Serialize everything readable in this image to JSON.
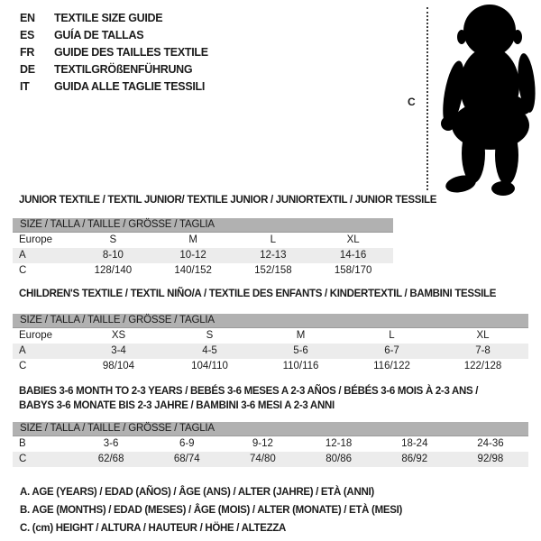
{
  "colors": {
    "background": "#ffffff",
    "table_header_bar": "#b1b1b1",
    "shaded_row": "#ececec",
    "text": "#1b1b1b",
    "silhouette": "#000000"
  },
  "header": {
    "languages": [
      {
        "code": "EN",
        "label": "TEXTILE SIZE GUIDE"
      },
      {
        "code": "ES",
        "label": "GUÍA DE TALLAS"
      },
      {
        "code": "FR",
        "label": "GUIDE DES TAILLES TEXTILE"
      },
      {
        "code": "DE",
        "label": "TEXTILGRÖßENFÜHRUNG"
      },
      {
        "code": "IT",
        "label": "GUIDA ALLE TAGLIE TESSILI"
      }
    ]
  },
  "figure": {
    "measure_label": "C",
    "silhouette": "toddler-silhouette"
  },
  "sections": [
    {
      "title_lines": [
        "JUNIOR TEXTILE / TEXTIL JUNIOR/ TEXTILE JUNIOR / JUNIORTEXTIL / JUNIOR TESSILE"
      ],
      "table": {
        "header": "SIZE / TALLA / TAILLE / GRÖSSE / TAGLIA",
        "rows": [
          {
            "label": "Europe",
            "shaded": false,
            "cells": [
              "S",
              "M",
              "L",
              "XL"
            ]
          },
          {
            "label": "A",
            "shaded": true,
            "cells": [
              "8-10",
              "10-12",
              "12-13",
              "14-16"
            ]
          },
          {
            "label": "C",
            "shaded": false,
            "cells": [
              "128/140",
              "140/152",
              "152/158",
              "158/170"
            ]
          }
        ]
      }
    },
    {
      "title_lines": [
        "CHILDREN'S TEXTILE / TEXTIL NIÑO/A / TEXTILE DES ENFANTS / KINDERTEXTIL / BAMBINI TESSILE"
      ],
      "table": {
        "header": "SIZE / TALLA / TAILLE / GRÖSSE / TAGLIA",
        "rows": [
          {
            "label": "Europe",
            "shaded": false,
            "cells": [
              "XS",
              "S",
              "M",
              "L",
              "XL"
            ]
          },
          {
            "label": "A",
            "shaded": true,
            "cells": [
              "3-4",
              "4-5",
              "5-6",
              "6-7",
              "7-8"
            ]
          },
          {
            "label": "C",
            "shaded": false,
            "cells": [
              "98/104",
              "104/110",
              "110/116",
              "116/122",
              "122/128"
            ]
          }
        ]
      }
    },
    {
      "title_lines": [
        "BABIES 3-6 MONTH TO 2-3 YEARS / BEBÉS 3-6 MESES A 2-3 AÑOS / BÉBÉS 3-6 MOIS À 2-3 ANS /",
        "BABYS 3-6 MONATE BIS 2-3 JAHRE / BAMBINI 3-6 MESI A 2-3 ANNI"
      ],
      "table": {
        "header": "SIZE / TALLA / TAILLE / GRÖSSE / TAGLIA",
        "rows": [
          {
            "label": "B",
            "shaded": false,
            "cells": [
              "3-6",
              "6-9",
              "9-12",
              "12-18",
              "18-24",
              "24-36"
            ]
          },
          {
            "label": "C",
            "shaded": true,
            "cells": [
              "62/68",
              "68/74",
              "74/80",
              "80/86",
              "86/92",
              "92/98"
            ]
          }
        ]
      }
    }
  ],
  "footnotes": [
    "A. AGE (YEARS) / EDAD (AÑOS) / ÂGE (ANS) / ALTER (JAHRE) / ETÀ (ANNI)",
    "B. AGE (MONTHS) / EDAD (MESES) / ÂGE (MOIS) / ALTER (MONATE) / ETÀ (MESI)",
    "C. (cm) HEIGHT / ALTURA / HAUTEUR / HÖHE / ALTEZZA"
  ]
}
